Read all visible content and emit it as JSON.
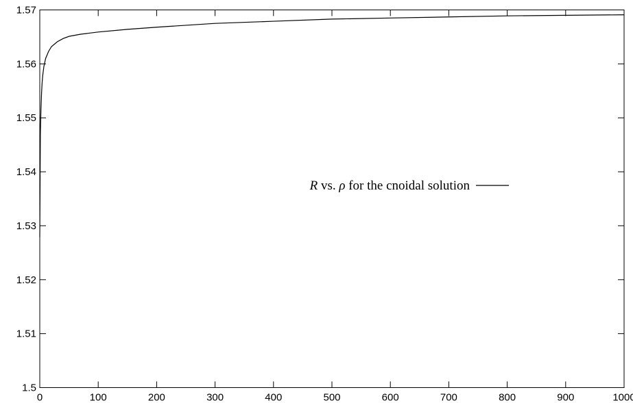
{
  "chart_data": {
    "type": "line",
    "title": "",
    "xlabel": "",
    "ylabel": "",
    "xlim": [
      0,
      1000
    ],
    "ylim": [
      1.5,
      1.57
    ],
    "x_ticks": [
      "0",
      "100",
      "200",
      "300",
      "400",
      "500",
      "600",
      "700",
      "800",
      "900",
      "1000"
    ],
    "y_ticks": [
      "1.5",
      "1.51",
      "1.52",
      "1.53",
      "1.54",
      "1.55",
      "1.56",
      "1.57"
    ],
    "grid": false,
    "legend": {
      "placement": "center-right",
      "entries": [
        {
          "label_italic": "R",
          "label_mid": " vs. ",
          "label_greek": "ρ",
          "label_rest": " for the cnoidal solution"
        }
      ]
    },
    "series": [
      {
        "color": "#000000",
        "x": [
          0,
          1,
          2,
          3,
          4,
          5,
          7,
          10,
          15,
          20,
          30,
          40,
          50,
          70,
          100,
          150,
          200,
          300,
          400,
          500,
          600,
          700,
          800,
          900,
          1000
        ],
        "y": [
          1.5279,
          1.547,
          1.5515,
          1.5545,
          1.5565,
          1.5578,
          1.5595,
          1.561,
          1.5623,
          1.5632,
          1.5641,
          1.5647,
          1.5651,
          1.5655,
          1.5659,
          1.5664,
          1.5668,
          1.5675,
          1.5679,
          1.5683,
          1.5685,
          1.5687,
          1.5689,
          1.569,
          1.5691
        ]
      }
    ]
  }
}
